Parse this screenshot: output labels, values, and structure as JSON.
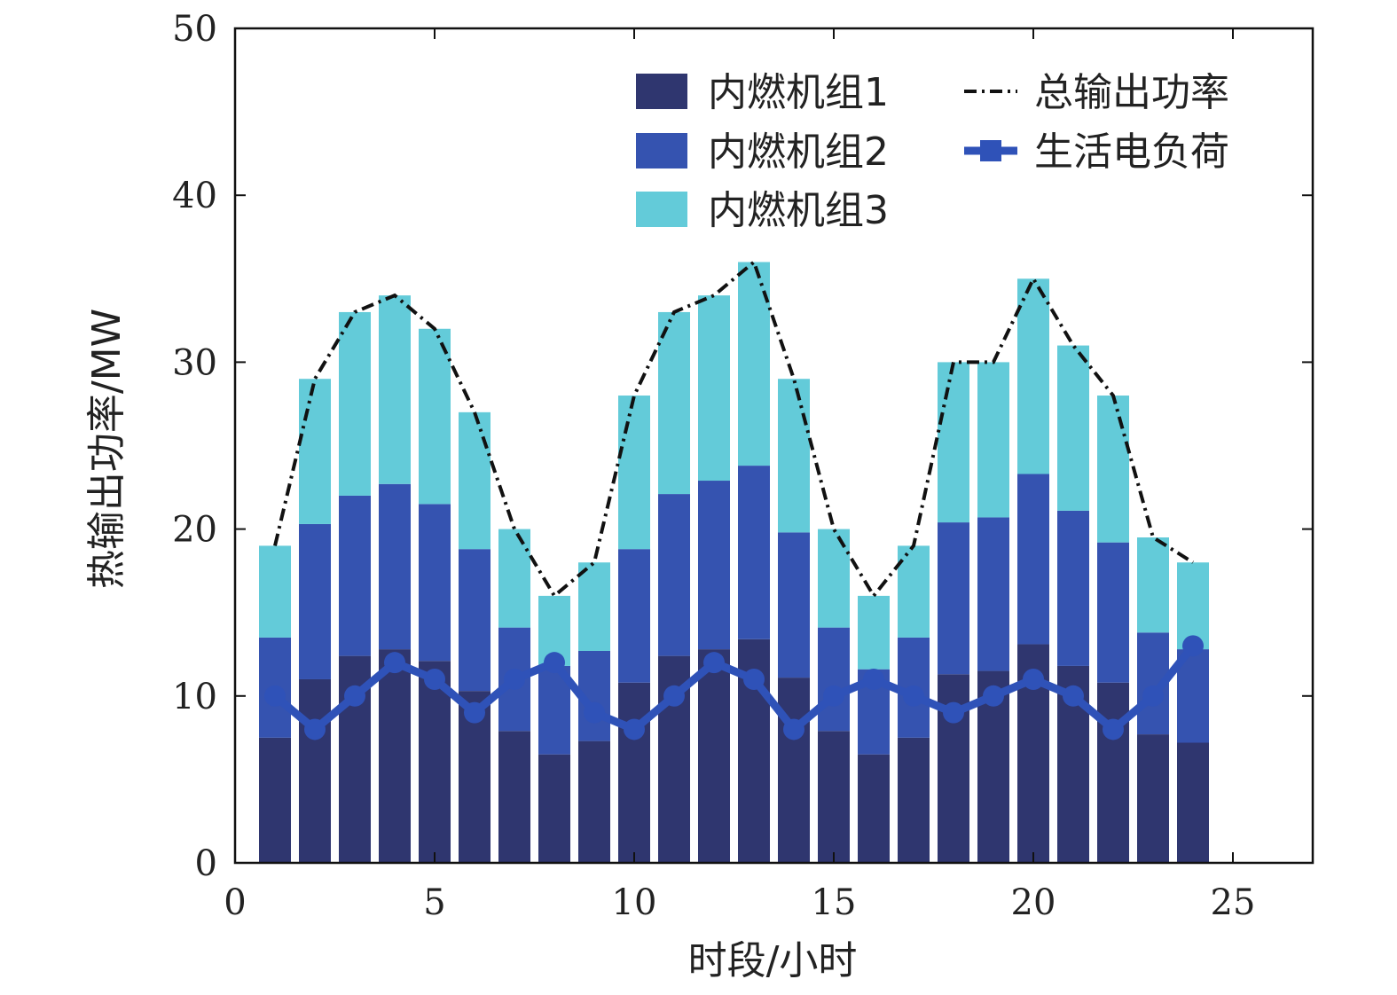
{
  "chart_data": {
    "type": "bar",
    "stacked": true,
    "xlabel": "时段/小时",
    "ylabel": "热输出功率/MW",
    "xlim": [
      0,
      27
    ],
    "ylim": [
      0,
      50
    ],
    "xticks": [
      0,
      5,
      10,
      15,
      20,
      25
    ],
    "yticks": [
      0,
      10,
      20,
      30,
      40,
      50
    ],
    "grid": false,
    "legend_position": "top-right",
    "x": [
      1,
      2,
      3,
      4,
      5,
      6,
      7,
      8,
      9,
      10,
      11,
      12,
      13,
      14,
      15,
      16,
      17,
      18,
      19,
      20,
      21,
      22,
      23,
      24
    ],
    "series": [
      {
        "name": "内燃机组1",
        "kind": "bar",
        "color": "#2f366f",
        "values": [
          7.5,
          11.0,
          12.4,
          12.8,
          12.1,
          10.3,
          7.9,
          6.5,
          7.3,
          10.8,
          12.4,
          12.8,
          13.4,
          11.1,
          7.9,
          6.5,
          7.5,
          11.3,
          11.5,
          13.1,
          11.8,
          10.8,
          7.7,
          7.2
        ]
      },
      {
        "name": "内燃机组2",
        "kind": "bar",
        "color": "#3553b0",
        "values": [
          6.0,
          9.3,
          9.6,
          9.9,
          9.4,
          8.5,
          6.2,
          5.3,
          5.4,
          8.0,
          9.7,
          10.1,
          10.4,
          8.7,
          6.2,
          5.1,
          6.0,
          9.1,
          9.2,
          10.2,
          9.3,
          8.4,
          6.1,
          5.6
        ]
      },
      {
        "name": "内燃机组3",
        "kind": "bar",
        "color": "#63cbd9",
        "values": [
          5.5,
          8.7,
          11.0,
          11.3,
          10.5,
          8.2,
          5.9,
          4.2,
          5.3,
          9.2,
          10.9,
          11.1,
          12.2,
          9.2,
          5.9,
          4.4,
          5.5,
          9.6,
          9.3,
          11.7,
          9.9,
          8.8,
          5.7,
          5.2
        ]
      },
      {
        "name": "总输出功率",
        "kind": "line",
        "style": "dash-dot",
        "color": "#111111",
        "values": [
          19,
          29,
          33,
          34,
          32,
          27,
          20,
          16,
          18,
          28,
          33,
          34,
          36,
          29,
          20,
          16,
          19,
          30,
          30,
          35,
          31,
          28,
          19.5,
          18
        ]
      },
      {
        "name": "生活电负荷",
        "kind": "line",
        "style": "solid-marker",
        "color": "#2f52b8",
        "values": [
          10,
          8,
          10,
          12,
          11,
          9,
          11,
          12,
          9,
          8,
          10,
          12,
          11,
          8,
          10,
          11,
          10,
          9,
          10,
          11,
          10,
          8,
          10,
          13
        ]
      }
    ]
  }
}
